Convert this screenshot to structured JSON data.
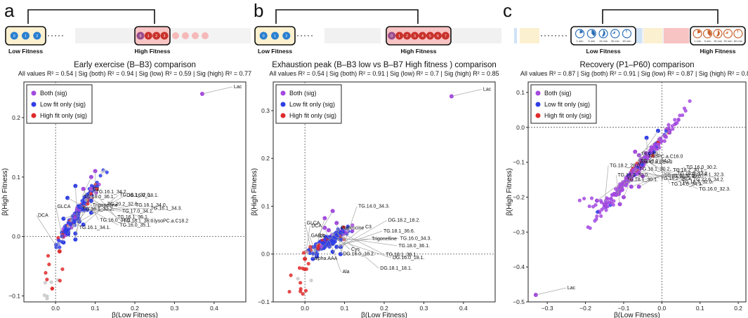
{
  "chart_data": [
    {
      "panel": "a",
      "type": "scatter",
      "title": "Early exercise (B–B3) comparison",
      "subtitle": "All values R² = 0.54 | Sig (both) R² = 0.94 | Sig (low) R² = 0.59 | Sig (high) R² = 0.77",
      "xlabel": "β(Low Fitness)",
      "ylabel": "β(High Fitness)",
      "xlim": [
        -0.08,
        0.48
      ],
      "ylim": [
        -0.11,
        0.26
      ],
      "xticks": [
        0.0,
        0.1,
        0.2,
        0.3,
        0.4
      ],
      "yticks": [
        -0.1,
        0.0,
        0.1,
        0.2
      ],
      "legend": [
        "Both (sig)",
        "Low fit only (sig)",
        "High fit only (sig)"
      ],
      "groups": [
        "Low Fitness",
        "High Fitness"
      ],
      "schema": {
        "low_digits": [
          "0",
          "1",
          "2"
        ],
        "high_digits": [
          "0",
          "1",
          "2",
          "3"
        ]
      },
      "highlights": [
        {
          "name": "Lac",
          "x": 0.37,
          "y": 0.24,
          "cls": "both"
        },
        {
          "name": "TG.18.0_36.1.",
          "x": 0.09,
          "y": 0.1,
          "cls": "both"
        },
        {
          "name": "TG.16.1_34.2.",
          "x": 0.1,
          "y": 0.11,
          "cls": "both"
        },
        {
          "name": "TG.16.1_34.1.",
          "x": 0.05,
          "y": 0.085,
          "cls": "low"
        },
        {
          "name": "TG.16.0_34.0.",
          "x": 0.07,
          "y": 0.08,
          "cls": "both"
        },
        {
          "name": "TG.16.1_36.1.",
          "x": 0.09,
          "y": 0.08,
          "cls": "both"
        },
        {
          "name": "TG.18.1_36.0.",
          "x": 0.08,
          "y": 0.07,
          "cls": "low"
        },
        {
          "name": "TG.16.0_35.1.",
          "x": 0.03,
          "y": 0.065,
          "cls": "low"
        },
        {
          "name": "lysoPC.a.C18.2",
          "x": 0.09,
          "y": 0.06,
          "cls": "low"
        },
        {
          "name": "TG.17.0_34.1.",
          "x": 0.06,
          "y": 0.05,
          "cls": "low"
        },
        {
          "name": "TG.16.1_34.3.",
          "x": 0.08,
          "y": 0.045,
          "cls": "low"
        },
        {
          "name": "TG.16.1_34.0.",
          "x": 0.09,
          "y": 0.04,
          "cls": "low"
        },
        {
          "name": "TG.20.2_32.0.",
          "x": 0.02,
          "y": 0.03,
          "cls": "low"
        },
        {
          "name": "DG.16.0_18.1.",
          "x": 0.06,
          "y": 0.025,
          "cls": "low"
        },
        {
          "name": "TG.16.1_32.0.",
          "x": 0.07,
          "y": 0.02,
          "cls": "low"
        },
        {
          "name": "Trigonelline",
          "x": 0.03,
          "y": 0.005,
          "cls": "low"
        },
        {
          "name": "C2",
          "x": 0.05,
          "y": 0.005,
          "cls": "low"
        },
        {
          "name": "TG.16.1_32.2.",
          "x": 0.05,
          "y": -0.005,
          "cls": "low"
        },
        {
          "name": "GLCA",
          "x": 0.02,
          "y": -0.01,
          "cls": "low"
        },
        {
          "name": "DCA",
          "x": 0.01,
          "y": -0.025,
          "cls": "high"
        }
      ]
    },
    {
      "panel": "b",
      "type": "scatter",
      "title": "Exhaustion peak (B–B3 low vs B–B7 High fitness ) comparison",
      "subtitle": "All values R² = 0.54 | Sig (both) R² = 0.91 | Sig (low) R² = 0.7 | Sig (high) R² = 0.85",
      "xlabel": "β(Low Fitness)",
      "ylabel": "β(High Fitness)",
      "xlim": [
        -0.08,
        0.48
      ],
      "ylim": [
        -0.1,
        0.36
      ],
      "xticks": [
        0.0,
        0.1,
        0.2,
        0.3,
        0.4
      ],
      "yticks": [
        -0.1,
        0.0,
        0.1,
        0.2,
        0.3
      ],
      "legend": [
        "Both (sig)",
        "Low fit only (sig)",
        "High fit only (sig)"
      ],
      "groups": [
        "Low Fitness",
        "High Fitness"
      ],
      "schema": {
        "low_digits": [
          "0",
          "1",
          "2"
        ],
        "high_digits": [
          "0",
          "1",
          "2",
          "3",
          "4",
          "5",
          "6",
          "7"
        ]
      },
      "highlights": [
        {
          "name": "Lac",
          "x": 0.37,
          "y": 0.33,
          "cls": "both"
        },
        {
          "name": "C2",
          "x": 0.07,
          "y": 0.09,
          "cls": "both"
        },
        {
          "name": "alpha.AAA",
          "x": 0.05,
          "y": 0.075,
          "cls": "both"
        },
        {
          "name": "DG.16.0_18.2.",
          "x": 0.08,
          "y": 0.065,
          "cls": "both"
        },
        {
          "name": "Ala",
          "x": 0.05,
          "y": 0.055,
          "cls": "both"
        },
        {
          "name": "Cys",
          "x": 0.06,
          "y": 0.05,
          "cls": "both"
        },
        {
          "name": "DG.18.1_18.1.",
          "x": 0.08,
          "y": 0.045,
          "cls": "low"
        },
        {
          "name": "TG.18.1_36.1.",
          "x": 0.09,
          "y": 0.045,
          "cls": "low"
        },
        {
          "name": "DG.16.0_18.1.",
          "x": 0.06,
          "y": 0.035,
          "cls": "low"
        },
        {
          "name": "TG.18.0_36.1.",
          "x": 0.08,
          "y": 0.035,
          "cls": "low"
        },
        {
          "name": "TG.16.0_34.3.",
          "x": 0.09,
          "y": 0.03,
          "cls": "low"
        },
        {
          "name": "Trigonelline",
          "x": 0.05,
          "y": 0.015,
          "cls": "low"
        },
        {
          "name": "TG.18.1_36.6.",
          "x": 0.08,
          "y": 0.015,
          "cls": "low"
        },
        {
          "name": "DG.18.2_18.2.",
          "x": 0.09,
          "y": 0.015,
          "cls": "low"
        },
        {
          "name": "C3",
          "x": 0.07,
          "y": 0.005,
          "cls": "low"
        },
        {
          "name": "Putrescine",
          "x": 0.03,
          "y": 0.0,
          "cls": "low"
        },
        {
          "name": "TG.14.0_34.3.",
          "x": 0.09,
          "y": 0.0,
          "cls": "low"
        },
        {
          "name": "DCA",
          "x": 0.0,
          "y": -0.01,
          "cls": "high"
        },
        {
          "name": "GLCA",
          "x": 0.02,
          "y": -0.01,
          "cls": "low"
        },
        {
          "name": "GABA",
          "x": 0.03,
          "y": -0.005,
          "cls": "low"
        }
      ]
    },
    {
      "panel": "c",
      "type": "scatter",
      "title": "Recovery (P1–P60) comparison",
      "subtitle": "All values R² = 0.87 | Sig (both) R² = 0.91 | Sig (low) R² = 0.87 | Sig (high) R² = 0.89",
      "xlabel": "β(Low Fitness)",
      "ylabel": "β(High Fitness)",
      "xlim": [
        -0.35,
        0.22
      ],
      "ylim": [
        -0.5,
        0.13
      ],
      "xticks": [
        -0.3,
        -0.2,
        -0.1,
        0.0,
        0.1,
        0.2
      ],
      "yticks": [
        -0.5,
        -0.4,
        -0.3,
        -0.2,
        -0.1,
        0.0,
        0.1
      ],
      "legend": [
        "Both (sig)",
        "Low fit only (sig)",
        "High fit only (sig)"
      ],
      "groups": [
        "Low Fitness",
        "High Fitness"
      ],
      "schema": {
        "low_digits": [
          "1 min",
          "5 min",
          "15 min",
          "30 min",
          "60 min"
        ],
        "high_digits": [
          "1 min",
          "5 min",
          "15 min",
          "30 min",
          "60 min"
        ]
      },
      "highlights": [
        {
          "name": "GLCAS",
          "x": 0.02,
          "y": -0.01,
          "cls": "both"
        },
        {
          "name": "lysoPC.a.C14.0",
          "x": -0.01,
          "y": -0.01,
          "cls": "low"
        },
        {
          "name": "lysoPC.a.C16.0",
          "x": -0.04,
          "y": -0.03,
          "cls": "low"
        },
        {
          "name": "TG.22.6_32.0.",
          "x": -0.01,
          "y": -0.05,
          "cls": "both"
        },
        {
          "name": "TG.14.0_34.3.",
          "x": -0.02,
          "y": -0.06,
          "cls": "both"
        },
        {
          "name": "TG.18.2_36.3.",
          "x": -0.07,
          "y": -0.07,
          "cls": "both"
        },
        {
          "name": "TG.18.3_30.0.",
          "x": -0.06,
          "y": -0.08,
          "cls": "both"
        },
        {
          "name": "TG.16.0_32.3.",
          "x": -0.05,
          "y": -0.09,
          "cls": "both"
        },
        {
          "name": "TG.18.3_32.0.",
          "x": -0.07,
          "y": -0.12,
          "cls": "both"
        },
        {
          "name": "TG.22.6_34.2.",
          "x": -0.06,
          "y": -0.13,
          "cls": "both"
        },
        {
          "name": "TG.18.1_32.3.",
          "x": -0.05,
          "y": -0.14,
          "cls": "both"
        },
        {
          "name": "TG.16.0_32.2.",
          "x": -0.1,
          "y": -0.16,
          "cls": "both"
        },
        {
          "name": "TG.16.0_30.2.",
          "x": -0.08,
          "y": -0.17,
          "cls": "both"
        },
        {
          "name": "TG.18.2_30.1.",
          "x": -0.06,
          "y": -0.17,
          "cls": "both"
        },
        {
          "name": "TG.18.1_30.1.",
          "x": -0.17,
          "y": -0.21,
          "cls": "both"
        },
        {
          "name": "TG.18.1_30.2.",
          "x": -0.12,
          "y": -0.19,
          "cls": "both"
        },
        {
          "name": "TG.18.0_34.2.",
          "x": -0.1,
          "y": -0.2,
          "cls": "both"
        },
        {
          "name": "TG.18.2_28.0.",
          "x": -0.15,
          "y": -0.22,
          "cls": "both"
        },
        {
          "name": "TG.18.2_30.0.",
          "x": -0.11,
          "y": -0.22,
          "cls": "both"
        },
        {
          "name": "Lac",
          "x": -0.33,
          "y": -0.48,
          "cls": "both"
        }
      ]
    }
  ],
  "colors": {
    "both": "#a349e0",
    "low": "#2f3fe6",
    "high": "#e02a2a",
    "ns": "#c8c8c8",
    "low_box": "#fbf0cf",
    "high_box": "#f7c3c3",
    "low_dot": "#2a7fd0",
    "high_dot": "#c9312b"
  }
}
